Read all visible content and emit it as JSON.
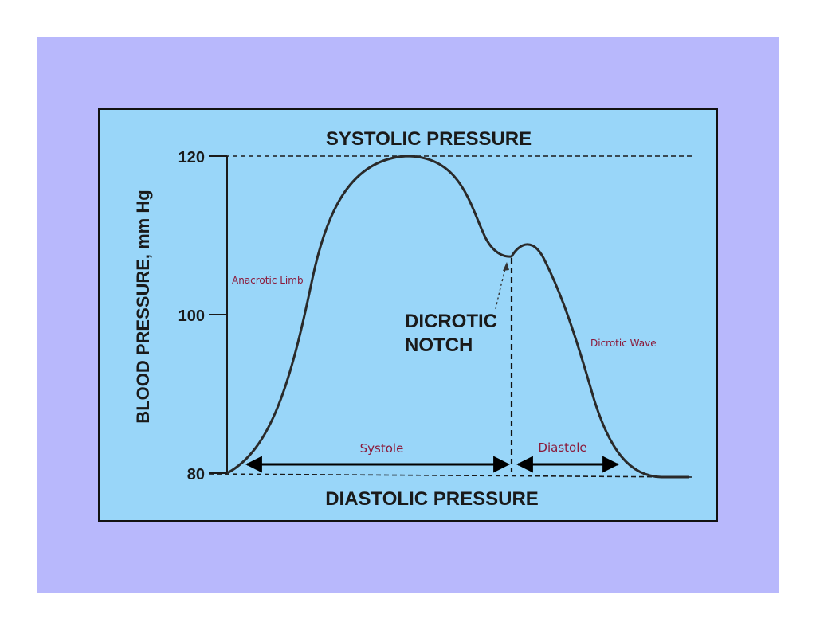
{
  "diagram": {
    "systolic_label": "SYSTOLIC PRESSURE",
    "diastolic_label": "DIASTOLIC PRESSURE",
    "y_axis_label": "BLOOD PRESSURE, mm Hg",
    "y_ticks": [
      "120",
      "100",
      "80"
    ],
    "dicrotic_notch_line1": "DICROTIC",
    "dicrotic_notch_line2": "NOTCH",
    "anacrotic_limb": "Anacrotic Limb",
    "dicrotic_wave": "Dicrotic Wave",
    "systole": "Systole",
    "diastole": "Diastole"
  },
  "colors": {
    "page_background": "#b8b8fc",
    "panel_background": "#99d6f9",
    "annotation": "#8b1a3a",
    "ink": "#1a1a1a"
  }
}
